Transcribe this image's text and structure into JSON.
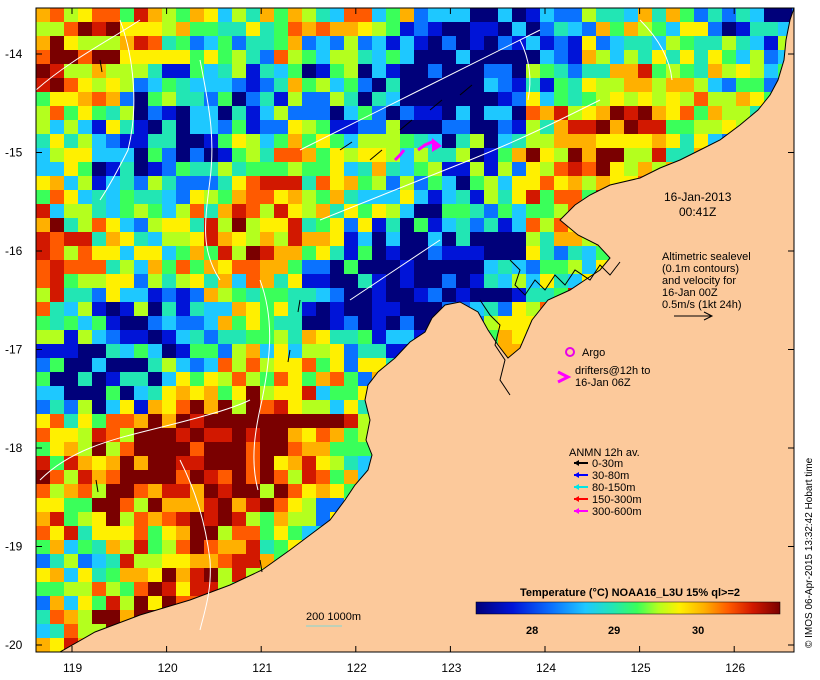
{
  "map": {
    "date": "16-Jan-2013",
    "time": "00:41Z",
    "altimetry_note": [
      "Altimetric sealevel",
      "(0.1m contours)",
      "and velocity for",
      "16-Jan 00Z",
      "0.5m/s (1kt 24h)"
    ],
    "argo_label": "Argo",
    "drifters_note": [
      "drifters@12h to",
      "16-Jan 06Z"
    ],
    "anmn_title": "ANMN 12h av.",
    "anmn_legend": [
      {
        "label": "0-30m",
        "color": "#000000"
      },
      {
        "label": "30-80m",
        "color": "#0000ff"
      },
      {
        "label": "80-150m",
        "color": "#00e5e5"
      },
      {
        "label": "150-300m",
        "color": "#ff0000"
      },
      {
        "label": "300-600m",
        "color": "#ff00ff"
      }
    ],
    "depth_contour_label": "200  1000m",
    "colorbar_title": "Temperature (°C) NOAA16_L3U 15% ql>=2",
    "colorbar_ticks": [
      "28",
      "29",
      "30"
    ],
    "credit": "© IMOS 06-Apr-2015 13:32:42 Hobart time",
    "lat_ticks": [
      "-14",
      "-15",
      "-16",
      "-17",
      "-18",
      "-19",
      "-20"
    ],
    "lon_ticks": [
      "119",
      "120",
      "121",
      "122",
      "123",
      "124",
      "125",
      "126"
    ],
    "colors": {
      "land": "#fcc99b",
      "argo": "#e800e8",
      "drifter": "#ff00ff",
      "depth_contour": "#7fd6d6"
    }
  }
}
